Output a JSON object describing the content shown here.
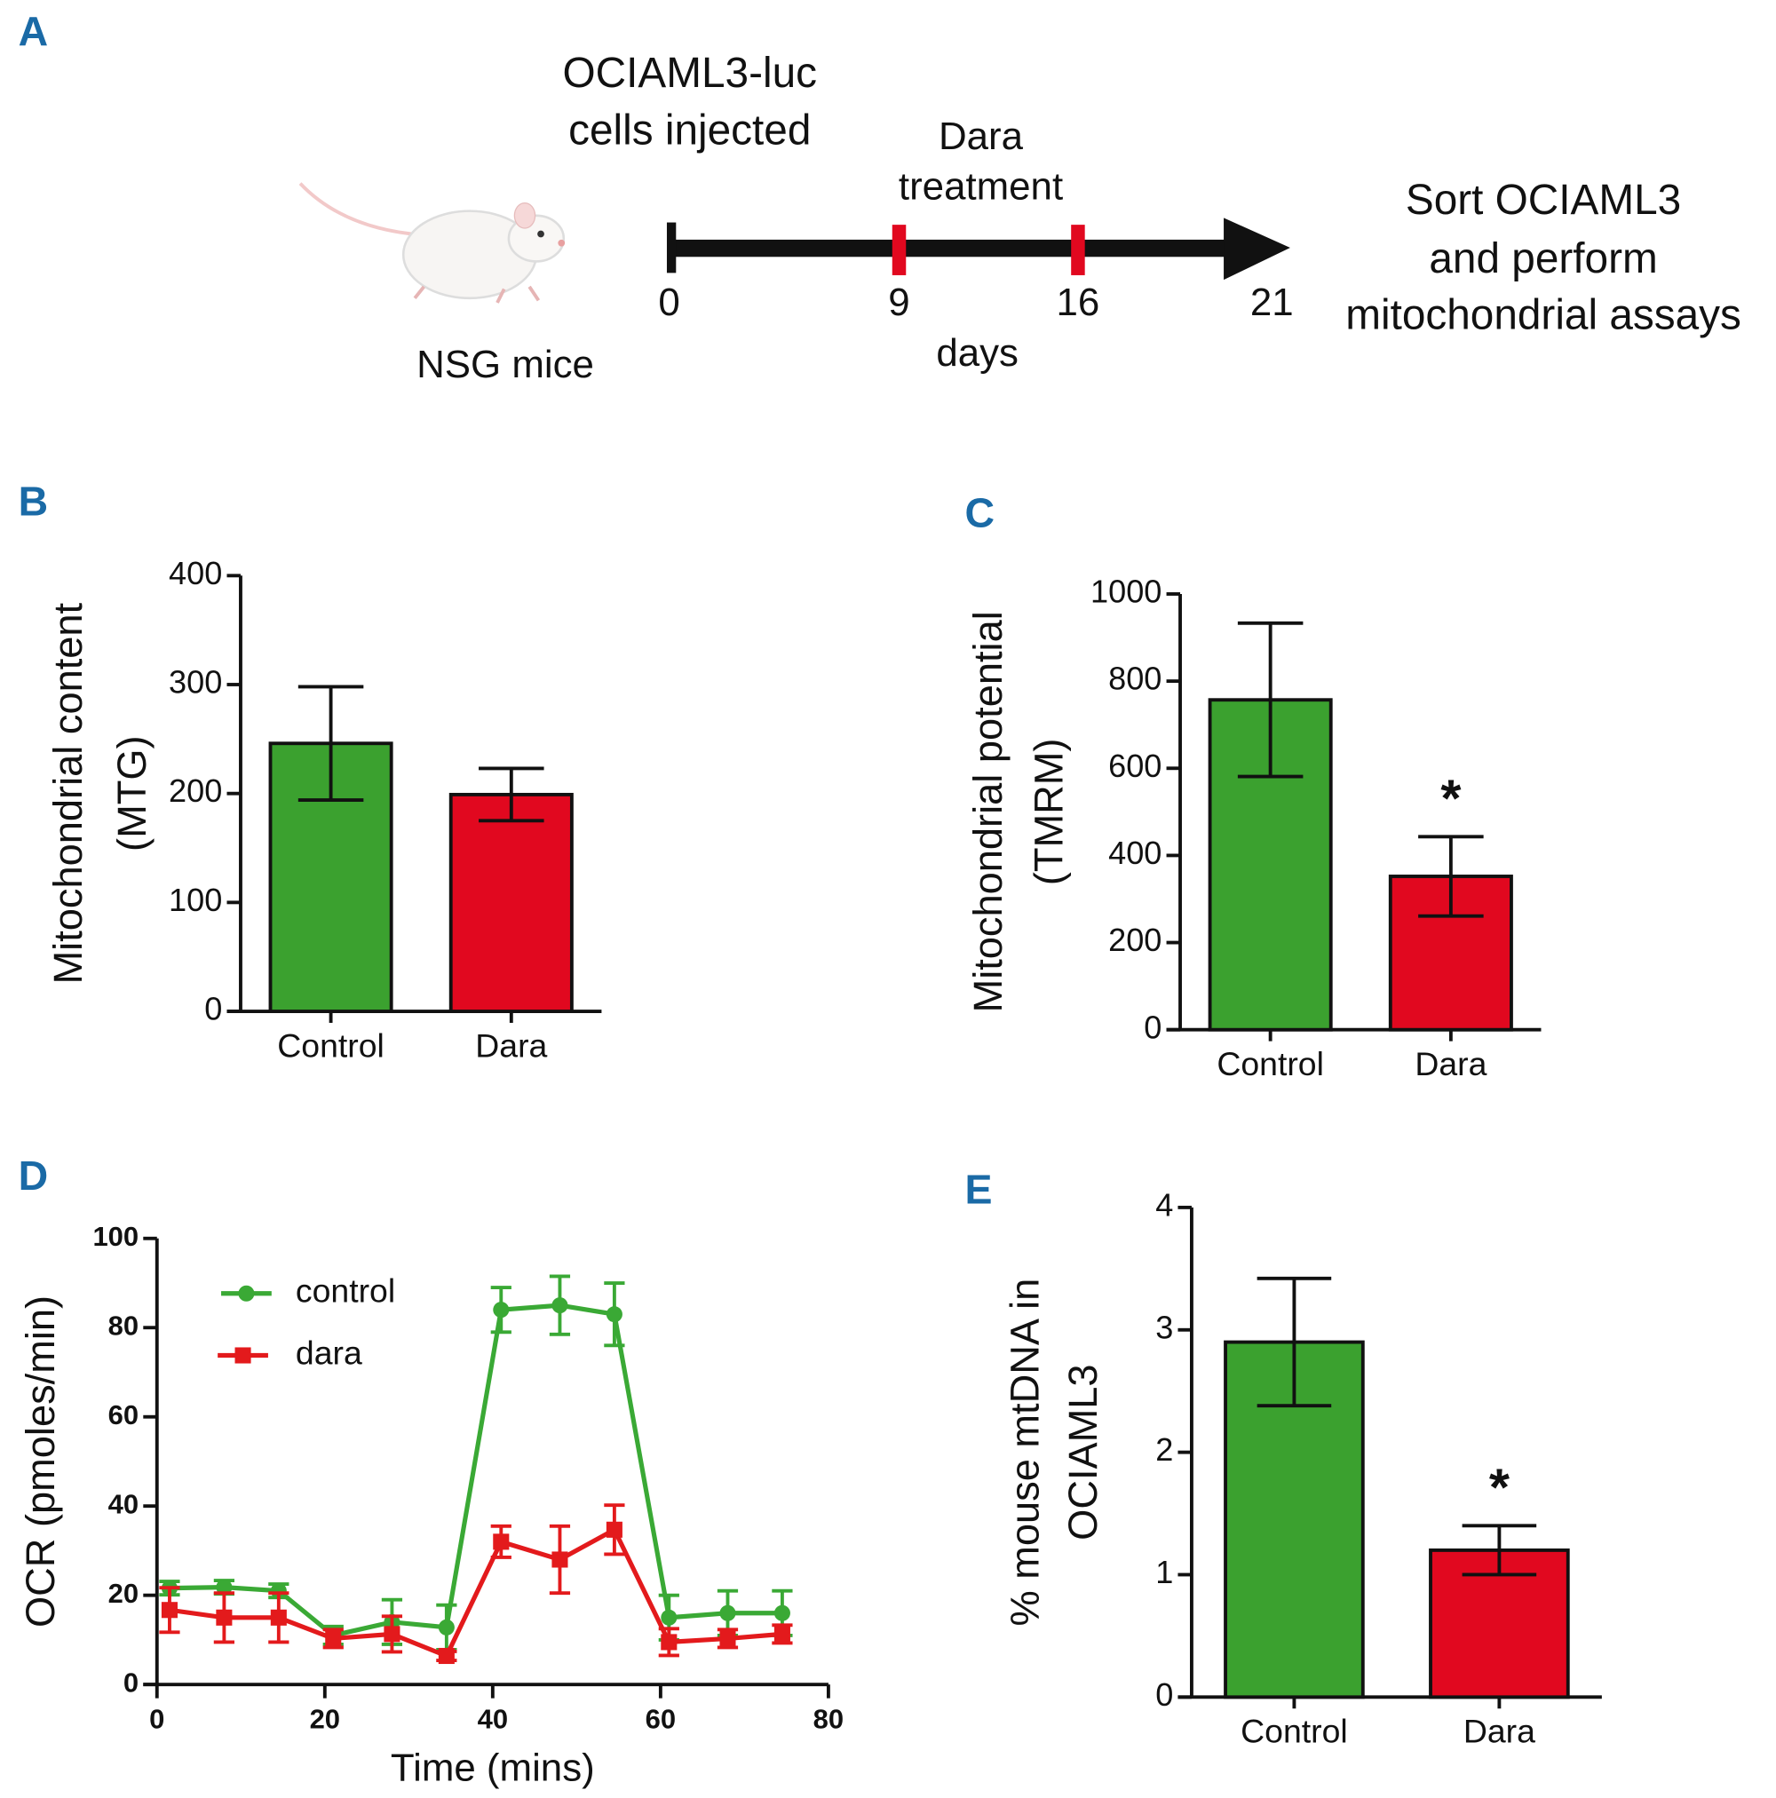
{
  "timeline": {
    "panel_label": "A",
    "injection_label": [
      "OCIAML3-luc",
      "cells injected"
    ],
    "treatment_label": [
      "Dara",
      "treatment"
    ],
    "outcome_label": [
      "Sort OCIAML3",
      "and perform",
      "mitochondrial assays"
    ],
    "mouse_label": "NSG mice",
    "xlabel": "days",
    "ticks": [
      0,
      9,
      16,
      21
    ],
    "treatment_days": [
      9,
      16
    ]
  },
  "chart_data": [
    {
      "panel_label": "B",
      "type": "bar",
      "ylabel": [
        "Mitochondrial content",
        "(MTG)"
      ],
      "categories": [
        "Control",
        "Dara"
      ],
      "values": [
        246,
        199
      ],
      "errors": [
        52,
        24
      ],
      "colors": [
        "#3ba12f",
        "#e1081f"
      ],
      "ylim": [
        0,
        400
      ],
      "yticks": [
        0,
        100,
        200,
        300,
        400
      ]
    },
    {
      "panel_label": "C",
      "type": "bar",
      "ylabel": [
        "Mitochondrial potential",
        "(TMRM)"
      ],
      "categories": [
        "Control",
        "Dara"
      ],
      "values": [
        757,
        352
      ],
      "errors": [
        176,
        91
      ],
      "colors": [
        "#3ba12f",
        "#e1081f"
      ],
      "annotation": "*",
      "ylim": [
        0,
        1000
      ],
      "yticks": [
        0,
        200,
        400,
        600,
        800,
        1000
      ]
    },
    {
      "panel_label": "D",
      "type": "line",
      "xlabel": "Time (mins)",
      "ylabel": "OCR (pmoles/min)",
      "x": [
        1.5,
        8,
        14.5,
        21,
        28,
        34.5,
        41,
        48,
        54.5,
        61,
        68,
        74.5
      ],
      "series": [
        {
          "name": "control",
          "color": "#3aa935",
          "marker": "circle",
          "values": [
            21.6,
            21.8,
            21,
            11,
            14,
            12.8,
            84,
            85,
            83,
            15,
            16,
            16
          ],
          "errors": [
            1.5,
            1.5,
            1.5,
            2,
            5,
            5,
            5,
            6.5,
            7,
            5,
            5,
            5
          ]
        },
        {
          "name": "dara",
          "color": "#e31a1c",
          "marker": "square",
          "values": [
            16.7,
            15,
            15,
            10.3,
            11.3,
            6.4,
            32,
            28,
            34.7,
            9.5,
            10.3,
            11.3
          ],
          "errors": [
            5,
            5.5,
            5.5,
            2,
            4,
            1,
            3.5,
            7.5,
            5.5,
            3,
            2,
            2
          ]
        }
      ],
      "xlim": [
        0,
        80
      ],
      "xticks": [
        0,
        20,
        40,
        60,
        80
      ],
      "ylim": [
        0,
        100
      ],
      "yticks": [
        0,
        20,
        40,
        60,
        80,
        100
      ]
    },
    {
      "panel_label": "E",
      "type": "bar",
      "ylabel": [
        "% mouse mtDNA  in",
        "OCIAML3"
      ],
      "categories": [
        "Control",
        "Dara"
      ],
      "values": [
        2.9,
        1.2
      ],
      "errors": [
        0.52,
        0.2
      ],
      "colors": [
        "#3ba12f",
        "#e1081f"
      ],
      "annotation": "*",
      "ylim": [
        0,
        4
      ],
      "yticks": [
        0,
        1,
        2,
        3,
        4
      ]
    }
  ]
}
